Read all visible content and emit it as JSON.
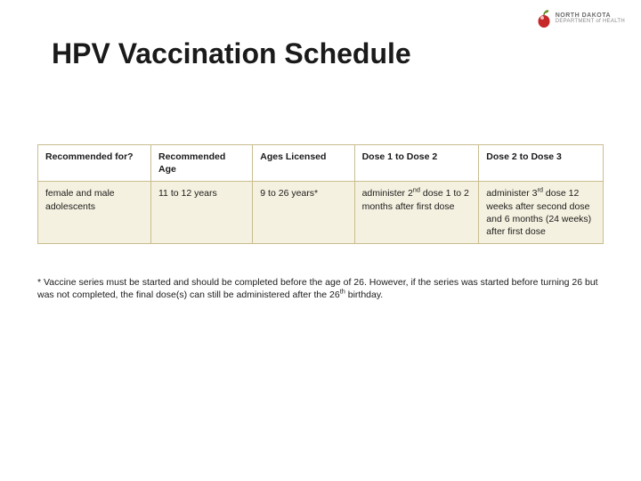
{
  "logo": {
    "line1": "NORTH DAKOTA",
    "line2": "DEPARTMENT of HEALTH"
  },
  "title": "HPV Vaccination Schedule",
  "title_fontsize": 32,
  "title_color": "#1a1a1a",
  "table": {
    "border_color": "#c9bd8f",
    "header_bg": "#ffffff",
    "body_bg": "#f5f1e0",
    "cell_fontsize": 10.5,
    "columns": [
      "Recommended for?",
      "Recommended Age",
      "Ages Licensed",
      "Dose 1 to Dose 2",
      "Dose 2 to Dose 3"
    ],
    "column_widths_pct": [
      20,
      18,
      18,
      22,
      22
    ],
    "rows": [
      [
        "female and male adolescents",
        "11 to 12 years",
        "9 to 26 years*",
        "administer 2<span class=\"sup\">nd</span> dose 1 to 2 months after first dose",
        "administer 3<span class=\"sup\">rd</span> dose 12 weeks after second dose and 6 months (24 weeks) after first dose"
      ]
    ]
  },
  "footnote": "* Vaccine series must be started and should be completed before the age of 26.  However, if the series was started before turning 26 but was not completed, the final dose(s) can still be administered after the 26<span class=\"sup\">th</span> birthday.",
  "background_color": "#ffffff"
}
